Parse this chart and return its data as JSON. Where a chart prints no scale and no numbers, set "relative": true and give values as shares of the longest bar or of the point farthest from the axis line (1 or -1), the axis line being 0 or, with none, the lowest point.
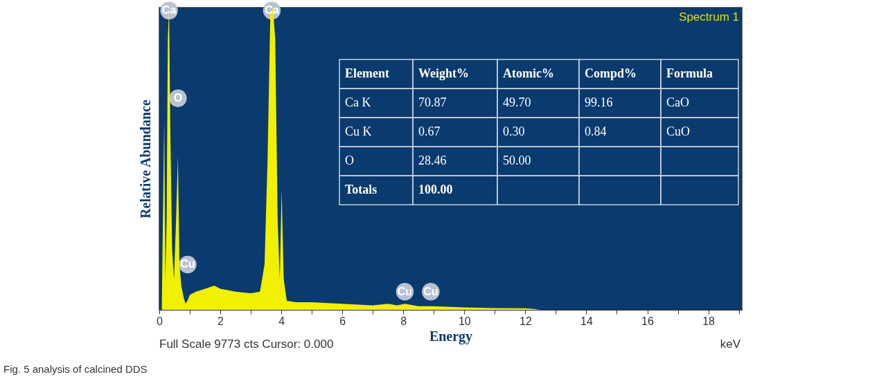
{
  "chart_data": {
    "type": "area",
    "relative": true,
    "xlabel": "Energy",
    "ylabel": "Relative Abundance",
    "x": [
      0,
      0.08,
      0.16,
      0.2,
      0.24,
      0.28,
      0.32,
      0.36,
      0.42,
      0.48,
      0.55,
      0.61,
      0.66,
      0.72,
      0.8,
      0.86,
      0.92,
      1.0,
      1.2,
      1.5,
      1.8,
      2.0,
      2.5,
      3.0,
      3.3,
      3.45,
      3.55,
      3.64,
      3.72,
      3.8,
      3.88,
      3.95,
      4.01,
      4.08,
      4.18,
      4.5,
      5.0,
      6.0,
      7.0,
      7.5,
      7.8,
      8.05,
      8.5,
      9.0,
      10.0,
      11.0,
      12.0,
      12.3,
      12.5,
      19.1
    ],
    "series": [
      {
        "color": "#f0f000",
        "values": [
          0,
          0,
          0.63,
          0.1,
          0.3,
          0.9,
          1.0,
          0.6,
          0.2,
          0.1,
          0.3,
          0.51,
          0.15,
          0.08,
          0.04,
          0.02,
          0.03,
          0.05,
          0.06,
          0.07,
          0.08,
          0.07,
          0.06,
          0.055,
          0.06,
          0.15,
          0.5,
          0.98,
          1.0,
          0.9,
          0.3,
          0.1,
          0.4,
          0.1,
          0.03,
          0.025,
          0.025,
          0.02,
          0.015,
          0.02,
          0.015,
          0.02,
          0.012,
          0.012,
          0.008,
          0.006,
          0.005,
          0.003,
          0,
          0
        ]
      }
    ],
    "xlim": [
      0,
      19.1
    ],
    "xticks": [
      0,
      {
        "value": 1,
        "label": null
      },
      2,
      {
        "value": 3,
        "label": null
      },
      4,
      {
        "value": 5,
        "label": null
      },
      6,
      {
        "value": 7,
        "label": null
      },
      8,
      {
        "value": 9,
        "label": null
      },
      10,
      {
        "value": 11,
        "label": null
      },
      12,
      {
        "value": 13,
        "label": null
      },
      14,
      {
        "value": 15,
        "label": null
      },
      16,
      {
        "value": 17,
        "label": null
      },
      18,
      {
        "value": 19,
        "label": null
      }
    ],
    "grid": false,
    "annotations": [
      {
        "text": "Ca",
        "x": 0.32,
        "y": 0.99
      },
      {
        "text": "O",
        "x": 0.61,
        "y": 0.7
      },
      {
        "text": "Cu",
        "x": 0.93,
        "y": 0.15
      },
      {
        "text": "Ca",
        "x": 3.69,
        "y": 0.99
      },
      {
        "text": "Cu",
        "x": 8.05,
        "y": 0.06
      },
      {
        "text": "Cu",
        "x": 8.9,
        "y": 0.06
      },
      "Spectrum 1",
      "Full Scale 9773 cts Cursor: 0.000",
      "keV",
      "Fig. 5 analysis of calcined DDS",
      "Element",
      "Weight%",
      "Atomic%",
      "Compd%",
      "Formula",
      "Ca K",
      "70.87",
      "49.70",
      "99.16",
      "CaO",
      "Cu K",
      "0.67",
      "0.30",
      "0.84",
      "CuO",
      "O",
      "28.46",
      "50.00",
      "Totals",
      "100.00"
    ]
  }
}
